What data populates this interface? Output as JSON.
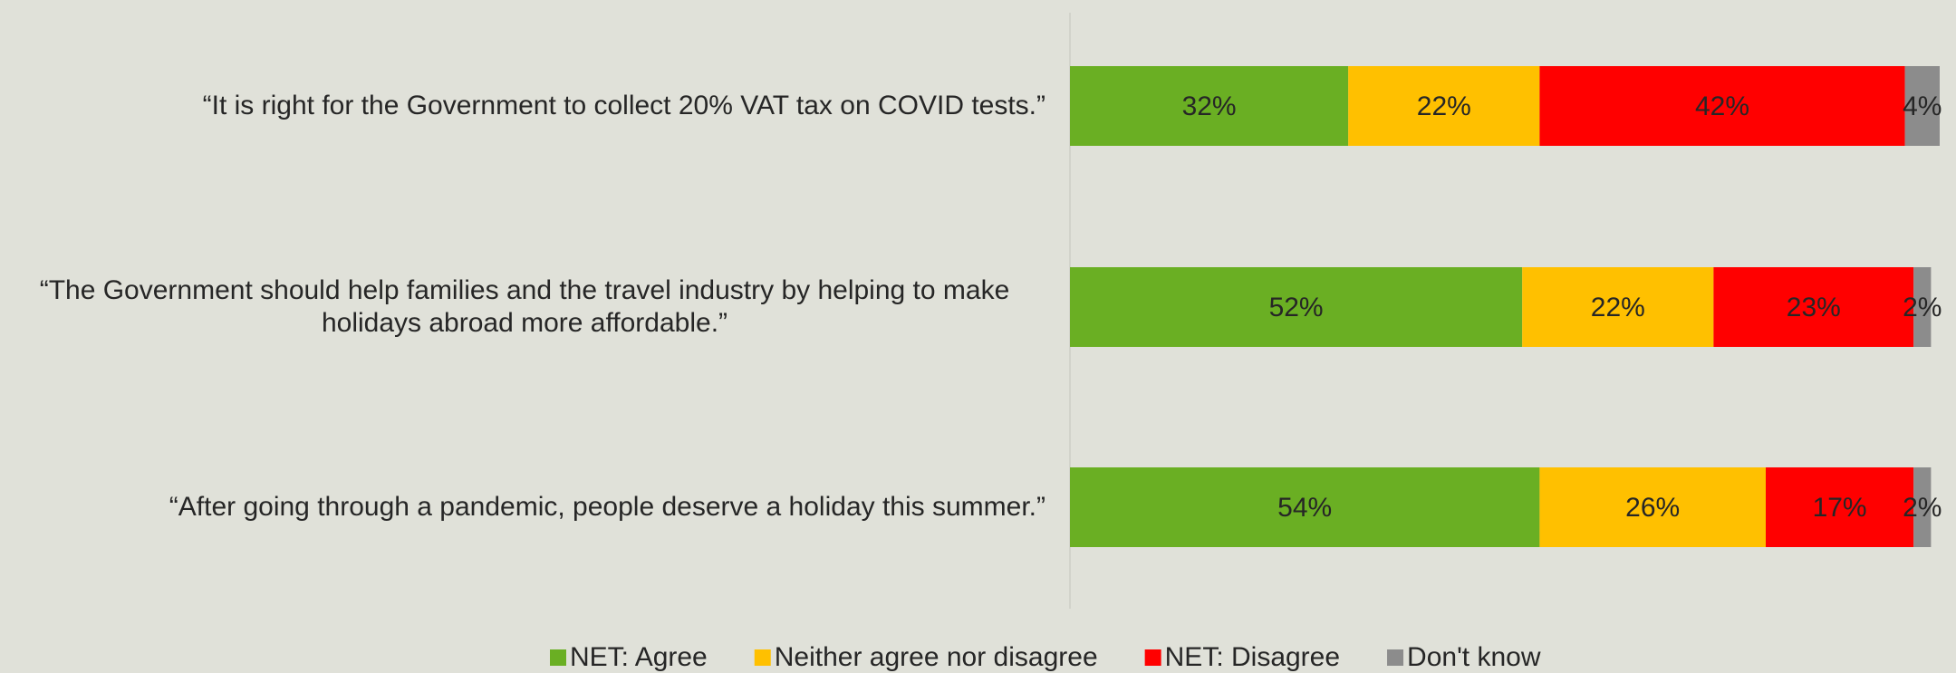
{
  "chart_data": {
    "type": "stacked_bar_horizontal",
    "categories": [
      "“It is right for the Government to collect 20% VAT tax on COVID tests.”",
      "“The Government should help families and the travel industry by helping to make holidays abroad more affordable.”",
      "“After going through a pandemic, people deserve a holiday this summer.”"
    ],
    "series": [
      {
        "name": "NET: Agree",
        "color": "#6aaf23",
        "values": [
          32,
          52,
          54
        ],
        "value_labels": [
          "32%",
          "52%",
          "54%"
        ]
      },
      {
        "name": "Neither agree nor disagree",
        "color": "#ffc000",
        "values": [
          22,
          22,
          26
        ],
        "value_labels": [
          "22%",
          "22%",
          "26%"
        ]
      },
      {
        "name": "NET: Disagree",
        "color": "#ff0000",
        "values": [
          42,
          23,
          17
        ],
        "value_labels": [
          "42%",
          "23%",
          "17%"
        ]
      },
      {
        "name": "Don't know",
        "color": "#8c8c8c",
        "values": [
          4,
          2,
          2
        ],
        "value_labels": [
          "4%",
          "2%",
          "2%"
        ]
      }
    ],
    "xlim": [
      0,
      100
    ],
    "legend": "bottom"
  }
}
